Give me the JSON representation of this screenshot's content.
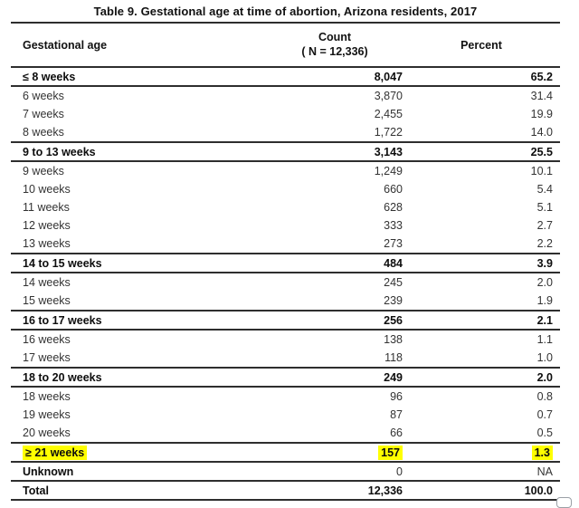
{
  "title": "Table 9. Gestational age at time of abortion, Arizona residents, 2017",
  "table": {
    "columns": {
      "gestational_age": "Gestational age",
      "count_line1": "Count",
      "count_line2": "( N = 12,336)",
      "percent": "Percent"
    },
    "rows": [
      {
        "label": "≤ 8 weeks",
        "count": "8,047",
        "percent": "65.2",
        "type": "section"
      },
      {
        "label": "6 weeks",
        "count": "3,870",
        "percent": "31.4",
        "type": "detail"
      },
      {
        "label": "7 weeks",
        "count": "2,455",
        "percent": "19.9",
        "type": "detail"
      },
      {
        "label": "8 weeks",
        "count": "1,722",
        "percent": "14.0",
        "type": "detail"
      },
      {
        "label": "9 to 13 weeks",
        "count": "3,143",
        "percent": "25.5",
        "type": "section"
      },
      {
        "label": "9 weeks",
        "count": "1,249",
        "percent": "10.1",
        "type": "detail"
      },
      {
        "label": "10 weeks",
        "count": "660",
        "percent": "5.4",
        "type": "detail"
      },
      {
        "label": "11 weeks",
        "count": "628",
        "percent": "5.1",
        "type": "detail"
      },
      {
        "label": "12 weeks",
        "count": "333",
        "percent": "2.7",
        "type": "detail"
      },
      {
        "label": "13 weeks",
        "count": "273",
        "percent": "2.2",
        "type": "detail"
      },
      {
        "label": "14 to 15 weeks",
        "count": "484",
        "percent": "3.9",
        "type": "section"
      },
      {
        "label": "14 weeks",
        "count": "245",
        "percent": "2.0",
        "type": "detail"
      },
      {
        "label": "15 weeks",
        "count": "239",
        "percent": "1.9",
        "type": "detail"
      },
      {
        "label": "16 to 17 weeks",
        "count": "256",
        "percent": "2.1",
        "type": "section"
      },
      {
        "label": "16 weeks",
        "count": "138",
        "percent": "1.1",
        "type": "detail"
      },
      {
        "label": "17 weeks",
        "count": "118",
        "percent": "1.0",
        "type": "detail"
      },
      {
        "label": "18 to 20 weeks",
        "count": "249",
        "percent": "2.0",
        "type": "section"
      },
      {
        "label": "18 weeks",
        "count": "96",
        "percent": "0.8",
        "type": "detail"
      },
      {
        "label": "19 weeks",
        "count": "87",
        "percent": "0.7",
        "type": "detail"
      },
      {
        "label": "20 weeks",
        "count": "66",
        "percent": "0.5",
        "type": "detail"
      },
      {
        "label": "≥ 21 weeks",
        "count": "157",
        "percent": "1.3",
        "type": "section",
        "highlight": true
      },
      {
        "label": "Unknown",
        "count": "0",
        "percent": "NA",
        "type": "section",
        "values_bold": false
      },
      {
        "label": "Total",
        "count": "12,336",
        "percent": "100.0",
        "type": "section"
      }
    ]
  },
  "colors": {
    "highlight": "#ffff00",
    "rule_dark": "#2e2e2e",
    "text_bold": "#0d0d0d",
    "text_regular": "#333333"
  }
}
